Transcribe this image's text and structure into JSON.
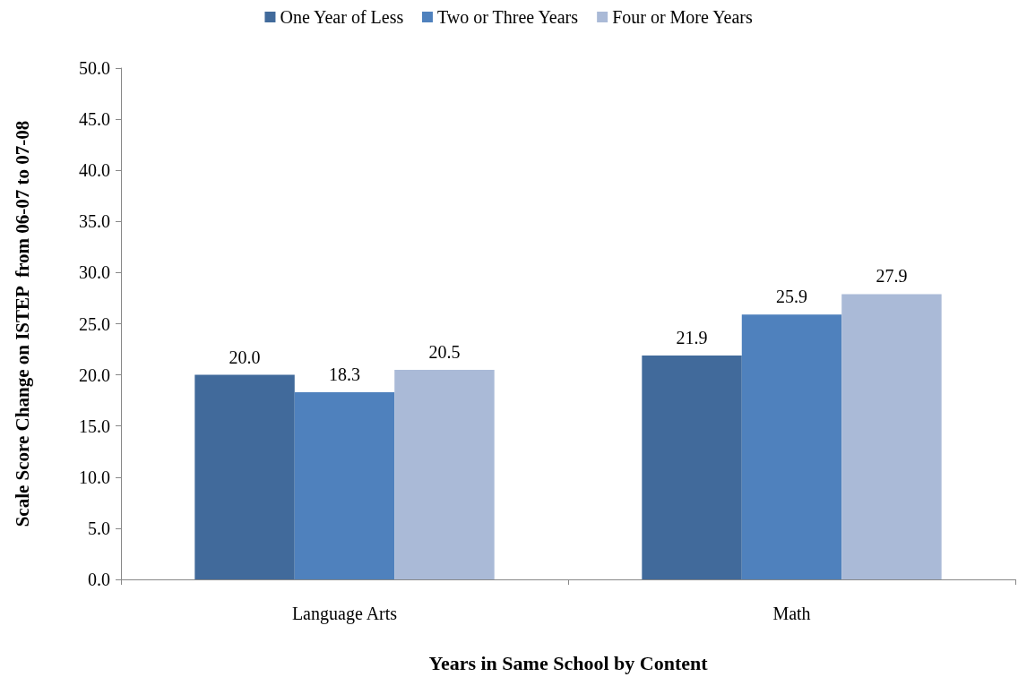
{
  "chart_data": {
    "type": "bar",
    "xlabel": "Years in Same School by Content",
    "ylabel": "Scale Score Change on ISTEP  from 06-07 to 07-08",
    "categories": [
      "Language Arts",
      "Math"
    ],
    "series": [
      {
        "name": "One Year of Less",
        "color": "#416a9b",
        "values": [
          20.0,
          21.9
        ],
        "value_labels": [
          "20.0",
          "21.9"
        ]
      },
      {
        "name": "Two or Three Years",
        "color": "#4f81bd",
        "values": [
          18.3,
          25.9
        ],
        "value_labels": [
          "18.3",
          "25.9"
        ]
      },
      {
        "name": "Four or More Years",
        "color": "#aabad7",
        "values": [
          20.5,
          27.9
        ],
        "value_labels": [
          "20.5",
          "27.9"
        ]
      }
    ],
    "ylim": [
      0,
      50
    ],
    "yticks": [
      {
        "value": 0,
        "label": "0.0"
      },
      {
        "value": 5,
        "label": "5.0"
      },
      {
        "value": 10,
        "label": "10.0"
      },
      {
        "value": 15,
        "label": "15.0"
      },
      {
        "value": 20,
        "label": "20.0"
      },
      {
        "value": 25,
        "label": "25.0"
      },
      {
        "value": 30,
        "label": "30.0"
      },
      {
        "value": 35,
        "label": "35.0"
      },
      {
        "value": 40,
        "label": "40.0"
      },
      {
        "value": 45,
        "label": "45.0"
      },
      {
        "value": 50,
        "label": "50.0"
      }
    ],
    "grid": false,
    "legend": "top"
  }
}
